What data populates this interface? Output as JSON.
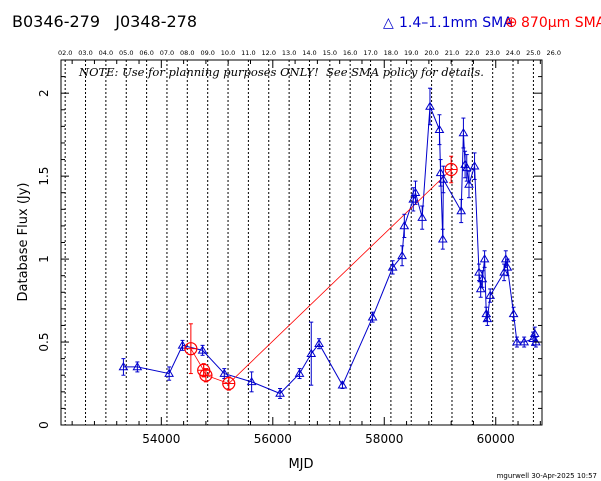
{
  "chart_data": {
    "type": "scatter",
    "title_left": "B0346-279   J0348-278",
    "legend": [
      {
        "symbol": "△",
        "text": "1.4–1.1mm SMA",
        "color": "#0000cc"
      },
      {
        "symbol": "⊕",
        "text": "870μm SMA",
        "color": "#ff0000"
      }
    ],
    "note": "NOTE: Use for planning purposes ONLY!  See SMA policy for details.",
    "xlabel": "MJD",
    "ylabel": "Database Flux (Jy)",
    "xlim": [
      52200,
      60830
    ],
    "ylim": [
      0,
      2.2
    ],
    "xticks": [
      {
        "v": 54000,
        "label": "54000"
      },
      {
        "v": 56000,
        "label": "56000"
      },
      {
        "v": 58000,
        "label": "58000"
      },
      {
        "v": 60000,
        "label": "60000"
      }
    ],
    "yticks": [
      {
        "v": 0,
        "label": "0"
      },
      {
        "v": 0.5,
        "label": "0.5"
      },
      {
        "v": 1,
        "label": "1"
      },
      {
        "v": 1.5,
        "label": "1.5"
      },
      {
        "v": 2,
        "label": "2"
      }
    ],
    "year_ticks": [
      {
        "v": 52275,
        "label": "02.0"
      },
      {
        "v": 52640,
        "label": "03.0"
      },
      {
        "v": 53005,
        "label": "04.0"
      },
      {
        "v": 53371,
        "label": "05.0"
      },
      {
        "v": 53736,
        "label": "06.0"
      },
      {
        "v": 54101,
        "label": "07.0"
      },
      {
        "v": 54466,
        "label": "08.0"
      },
      {
        "v": 54832,
        "label": "09.0"
      },
      {
        "v": 55197,
        "label": "10.0"
      },
      {
        "v": 55562,
        "label": "11.0"
      },
      {
        "v": 55927,
        "label": "12.0"
      },
      {
        "v": 56293,
        "label": "13.0"
      },
      {
        "v": 56658,
        "label": "14.0"
      },
      {
        "v": 57023,
        "label": "15.0"
      },
      {
        "v": 57388,
        "label": "16.0"
      },
      {
        "v": 57754,
        "label": "17.0"
      },
      {
        "v": 58119,
        "label": "18.0"
      },
      {
        "v": 58484,
        "label": "19.0"
      },
      {
        "v": 58849,
        "label": "20.0"
      },
      {
        "v": 59215,
        "label": "21.0"
      },
      {
        "v": 59580,
        "label": "22.0"
      },
      {
        "v": 59945,
        "label": "23.0"
      },
      {
        "v": 60310,
        "label": "24.0"
      },
      {
        "v": 60676,
        "label": "25.0"
      },
      {
        "v": 61041,
        "label": "26.0"
      }
    ],
    "series": [
      {
        "name": "1.4–1.1mm SMA",
        "color": "#0000cc",
        "marker": "triangle",
        "points": [
          {
            "x": 53320,
            "y": 0.35,
            "err": 0.05
          },
          {
            "x": 53570,
            "y": 0.35,
            "err": 0.03
          },
          {
            "x": 54140,
            "y": 0.31,
            "err": 0.04
          },
          {
            "x": 54380,
            "y": 0.48,
            "err": 0.03
          },
          {
            "x": 54740,
            "y": 0.45,
            "err": 0.03
          },
          {
            "x": 55130,
            "y": 0.31,
            "err": 0.03
          },
          {
            "x": 55620,
            "y": 0.26,
            "err": 0.06
          },
          {
            "x": 56130,
            "y": 0.19,
            "err": 0.03
          },
          {
            "x": 56480,
            "y": 0.31,
            "err": 0.03
          },
          {
            "x": 56690,
            "y": 0.43,
            "err": 0.19
          },
          {
            "x": 56830,
            "y": 0.49,
            "err": 0.03
          },
          {
            "x": 57250,
            "y": 0.24,
            "err": 0.02
          },
          {
            "x": 57790,
            "y": 0.65,
            "err": 0.03
          },
          {
            "x": 58150,
            "y": 0.95,
            "err": 0.04
          },
          {
            "x": 58320,
            "y": 1.02,
            "err": 0.06
          },
          {
            "x": 58360,
            "y": 1.2,
            "err": 0.07
          },
          {
            "x": 58520,
            "y": 1.36,
            "err": 0.07
          },
          {
            "x": 58560,
            "y": 1.4,
            "err": 0.07
          },
          {
            "x": 58680,
            "y": 1.25,
            "err": 0.07
          },
          {
            "x": 58820,
            "y": 1.92,
            "err": 0.11
          },
          {
            "x": 58990,
            "y": 1.78,
            "err": 0.09
          },
          {
            "x": 59010,
            "y": 1.52,
            "err": 0.08
          },
          {
            "x": 59050,
            "y": 1.12,
            "err": 0.06
          },
          {
            "x": 59060,
            "y": 1.48,
            "err": 0.08
          },
          {
            "x": 59380,
            "y": 1.29,
            "err": 0.07
          },
          {
            "x": 59420,
            "y": 1.76,
            "err": 0.09
          },
          {
            "x": 59450,
            "y": 1.57,
            "err": 0.08
          },
          {
            "x": 59480,
            "y": 1.55,
            "err": 0.08
          },
          {
            "x": 59520,
            "y": 1.45,
            "err": 0.08
          },
          {
            "x": 59620,
            "y": 1.56,
            "err": 0.08
          },
          {
            "x": 59700,
            "y": 0.92,
            "err": 0.05
          },
          {
            "x": 59730,
            "y": 0.82,
            "err": 0.05
          },
          {
            "x": 59760,
            "y": 0.88,
            "err": 0.05
          },
          {
            "x": 59800,
            "y": 1.0,
            "err": 0.05
          },
          {
            "x": 59830,
            "y": 0.67,
            "err": 0.04
          },
          {
            "x": 59850,
            "y": 0.64,
            "err": 0.04
          },
          {
            "x": 59900,
            "y": 0.78,
            "err": 0.04
          },
          {
            "x": 60150,
            "y": 0.92,
            "err": 0.05
          },
          {
            "x": 60180,
            "y": 1.0,
            "err": 0.05
          },
          {
            "x": 60210,
            "y": 0.95,
            "err": 0.05
          },
          {
            "x": 60320,
            "y": 0.67,
            "err": 0.04
          },
          {
            "x": 60380,
            "y": 0.5,
            "err": 0.03
          },
          {
            "x": 60510,
            "y": 0.5,
            "err": 0.03
          },
          {
            "x": 60670,
            "y": 0.52,
            "err": 0.04
          },
          {
            "x": 60700,
            "y": 0.55,
            "err": 0.04
          },
          {
            "x": 60720,
            "y": 0.5,
            "err": 0.03
          }
        ]
      },
      {
        "name": "870μm SMA",
        "color": "#ff0000",
        "marker": "circle-plus",
        "points": [
          {
            "x": 54530,
            "y": 0.46,
            "err": 0.15
          },
          {
            "x": 54760,
            "y": 0.33,
            "err": 0.04
          },
          {
            "x": 54800,
            "y": 0.3,
            "err": 0.04
          },
          {
            "x": 55210,
            "y": 0.25,
            "err": 0.04
          },
          {
            "x": 59200,
            "y": 1.54,
            "err": 0.08
          }
        ]
      }
    ]
  },
  "footer": "mgurwell 30-Apr-2025 10:57"
}
